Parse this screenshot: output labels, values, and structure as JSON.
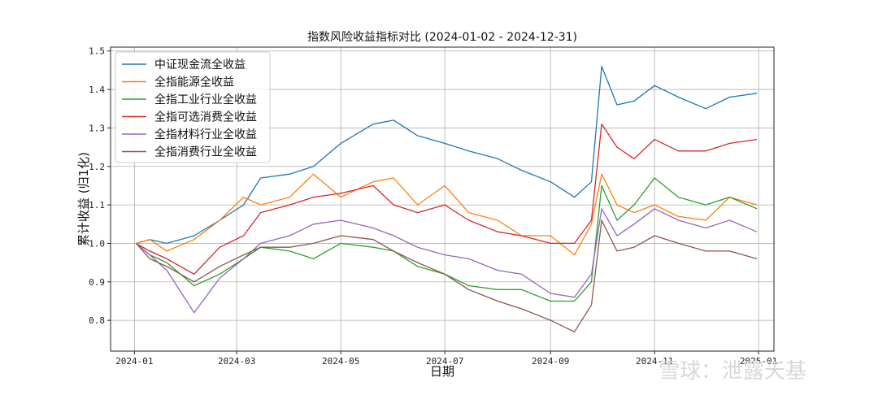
{
  "chart_data": {
    "type": "line",
    "title": "指数风险收益指标对比 (2024-01-02 - 2024-12-31)",
    "xlabel": "日期",
    "ylabel": "累计收益 (归1化)",
    "x_ticks": [
      "2024-01",
      "2024-03",
      "2024-05",
      "2024-07",
      "2024-09",
      "2024-11",
      "2025-01"
    ],
    "y_ticks": [
      "0.8",
      "0.9",
      "1.0",
      "1.1",
      "1.2",
      "1.3",
      "1.4",
      "1.5"
    ],
    "xlim": [
      "2023-12-18",
      "2025-01-10"
    ],
    "ylim": [
      0.72,
      1.51
    ],
    "grid": true,
    "legend_position": "upper-left",
    "series": [
      {
        "name": "中证现金流全收益",
        "color": "#1f77b4",
        "x": [
          "2024-01-02",
          "2024-01-10",
          "2024-01-20",
          "2024-02-05",
          "2024-02-20",
          "2024-03-05",
          "2024-03-15",
          "2024-04-01",
          "2024-04-15",
          "2024-05-01",
          "2024-05-20",
          "2024-06-01",
          "2024-06-15",
          "2024-07-01",
          "2024-07-15",
          "2024-08-01",
          "2024-08-15",
          "2024-09-01",
          "2024-09-15",
          "2024-09-25",
          "2024-10-01",
          "2024-10-10",
          "2024-10-20",
          "2024-11-01",
          "2024-11-15",
          "2024-12-01",
          "2024-12-15",
          "2024-12-31"
        ],
        "y": [
          1.0,
          1.01,
          1.0,
          1.02,
          1.06,
          1.1,
          1.17,
          1.18,
          1.2,
          1.26,
          1.31,
          1.32,
          1.28,
          1.26,
          1.24,
          1.22,
          1.19,
          1.16,
          1.12,
          1.16,
          1.46,
          1.36,
          1.37,
          1.41,
          1.38,
          1.35,
          1.38,
          1.39
        ]
      },
      {
        "name": "全指能源全收益",
        "color": "#ff7f0e",
        "x": [
          "2024-01-02",
          "2024-01-10",
          "2024-01-20",
          "2024-02-05",
          "2024-02-20",
          "2024-03-05",
          "2024-03-15",
          "2024-04-01",
          "2024-04-15",
          "2024-05-01",
          "2024-05-20",
          "2024-06-01",
          "2024-06-15",
          "2024-07-01",
          "2024-07-15",
          "2024-08-01",
          "2024-08-15",
          "2024-09-01",
          "2024-09-15",
          "2024-09-25",
          "2024-10-01",
          "2024-10-10",
          "2024-10-20",
          "2024-11-01",
          "2024-11-15",
          "2024-12-01",
          "2024-12-15",
          "2024-12-31"
        ],
        "y": [
          1.0,
          1.01,
          0.98,
          1.01,
          1.06,
          1.12,
          1.1,
          1.12,
          1.18,
          1.12,
          1.16,
          1.17,
          1.1,
          1.15,
          1.08,
          1.06,
          1.02,
          1.02,
          0.97,
          1.05,
          1.18,
          1.1,
          1.08,
          1.1,
          1.07,
          1.06,
          1.12,
          1.1
        ]
      },
      {
        "name": "全指工业行业全收益",
        "color": "#2ca02c",
        "x": [
          "2024-01-02",
          "2024-01-10",
          "2024-01-20",
          "2024-02-05",
          "2024-02-20",
          "2024-03-05",
          "2024-03-15",
          "2024-04-01",
          "2024-04-15",
          "2024-05-01",
          "2024-05-20",
          "2024-06-01",
          "2024-06-15",
          "2024-07-01",
          "2024-07-15",
          "2024-08-01",
          "2024-08-15",
          "2024-09-01",
          "2024-09-15",
          "2024-09-25",
          "2024-10-01",
          "2024-10-10",
          "2024-10-20",
          "2024-11-01",
          "2024-11-15",
          "2024-12-01",
          "2024-12-15",
          "2024-12-31"
        ],
        "y": [
          1.0,
          0.97,
          0.95,
          0.89,
          0.92,
          0.96,
          0.99,
          0.98,
          0.96,
          1.0,
          0.99,
          0.98,
          0.94,
          0.92,
          0.89,
          0.88,
          0.88,
          0.85,
          0.85,
          0.9,
          1.15,
          1.06,
          1.1,
          1.17,
          1.12,
          1.1,
          1.12,
          1.09
        ]
      },
      {
        "name": "全指可选消费全收益",
        "color": "#d62728",
        "x": [
          "2024-01-02",
          "2024-01-10",
          "2024-01-20",
          "2024-02-05",
          "2024-02-20",
          "2024-03-05",
          "2024-03-15",
          "2024-04-01",
          "2024-04-15",
          "2024-05-01",
          "2024-05-20",
          "2024-06-01",
          "2024-06-15",
          "2024-07-01",
          "2024-07-15",
          "2024-08-01",
          "2024-08-15",
          "2024-09-01",
          "2024-09-15",
          "2024-09-25",
          "2024-10-01",
          "2024-10-10",
          "2024-10-20",
          "2024-11-01",
          "2024-11-15",
          "2024-12-01",
          "2024-12-15",
          "2024-12-31"
        ],
        "y": [
          1.0,
          0.98,
          0.96,
          0.92,
          0.99,
          1.02,
          1.08,
          1.1,
          1.12,
          1.13,
          1.15,
          1.1,
          1.08,
          1.1,
          1.06,
          1.03,
          1.02,
          1.0,
          1.0,
          1.06,
          1.31,
          1.25,
          1.22,
          1.27,
          1.24,
          1.24,
          1.26,
          1.27
        ]
      },
      {
        "name": "全指材料行业全收益",
        "color": "#9467bd",
        "x": [
          "2024-01-02",
          "2024-01-10",
          "2024-01-20",
          "2024-02-05",
          "2024-02-20",
          "2024-03-05",
          "2024-03-15",
          "2024-04-01",
          "2024-04-15",
          "2024-05-01",
          "2024-05-20",
          "2024-06-01",
          "2024-06-15",
          "2024-07-01",
          "2024-07-15",
          "2024-08-01",
          "2024-08-15",
          "2024-09-01",
          "2024-09-15",
          "2024-09-25",
          "2024-10-01",
          "2024-10-10",
          "2024-10-20",
          "2024-11-01",
          "2024-11-15",
          "2024-12-01",
          "2024-12-15",
          "2024-12-31"
        ],
        "y": [
          1.0,
          0.97,
          0.93,
          0.82,
          0.91,
          0.96,
          1.0,
          1.02,
          1.05,
          1.06,
          1.04,
          1.02,
          0.99,
          0.97,
          0.96,
          0.93,
          0.92,
          0.87,
          0.86,
          0.92,
          1.09,
          1.02,
          1.05,
          1.09,
          1.06,
          1.04,
          1.06,
          1.03
        ]
      },
      {
        "name": "全指消费行业全收益",
        "color": "#8c564b",
        "x": [
          "2024-01-02",
          "2024-01-10",
          "2024-01-20",
          "2024-02-05",
          "2024-02-20",
          "2024-03-05",
          "2024-03-15",
          "2024-04-01",
          "2024-04-15",
          "2024-05-01",
          "2024-05-20",
          "2024-06-01",
          "2024-06-15",
          "2024-07-01",
          "2024-07-15",
          "2024-08-01",
          "2024-08-15",
          "2024-09-01",
          "2024-09-15",
          "2024-09-25",
          "2024-10-01",
          "2024-10-10",
          "2024-10-20",
          "2024-11-01",
          "2024-11-15",
          "2024-12-01",
          "2024-12-15",
          "2024-12-31"
        ],
        "y": [
          1.0,
          0.96,
          0.94,
          0.9,
          0.94,
          0.97,
          0.99,
          0.99,
          1.0,
          1.02,
          1.01,
          0.98,
          0.95,
          0.92,
          0.88,
          0.85,
          0.83,
          0.8,
          0.77,
          0.84,
          1.06,
          0.98,
          0.99,
          1.02,
          1.0,
          0.98,
          0.98,
          0.96
        ]
      }
    ]
  },
  "watermark": "雪球：泄露天基"
}
